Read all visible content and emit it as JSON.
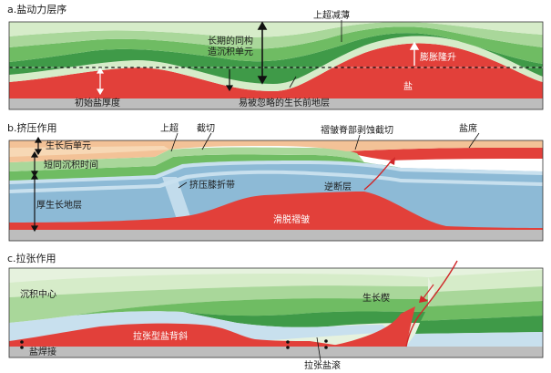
{
  "panels": [
    {
      "title": "a.盐动力层序",
      "labels": {
        "top_truncation": "上超减薄",
        "growth_sequence_1": "长期的同构",
        "growth_sequence_2": "造沉积单元",
        "uplift": "膨胀隆升",
        "salt": "盐",
        "initial_salt_thickness": "初始盐厚度",
        "pre_kinematic": "易被忽略的生长前地层"
      }
    },
    {
      "title": "b.挤压作用",
      "labels": {
        "onlap": "上超",
        "truncation": "截切",
        "crest_erosion": "褶皱脊部剥蚀截切",
        "salt_sheet": "盐席",
        "post_growth_unit": "生长后单元",
        "short_growth_time": "短同沉积时间",
        "thick_pre_growth": "厚生长地层",
        "kink_band": "挤压膝折带",
        "thrust_fault": "逆断层",
        "detachment_fold": "滑脱褶皱"
      }
    },
    {
      "title": "c.拉张作用",
      "labels": {
        "depocenter": "沉积中心",
        "growth_wedge": "生长楔",
        "extensional_anticline": "拉张型盐背斜",
        "salt_weld": "盐焊接",
        "salt_roller": "拉张盐滚"
      }
    }
  ],
  "colors": {
    "salt": "#e2403a",
    "green_dark": "#3f9a48",
    "green_mid": "#6fbc63",
    "green_light": "#a9d79a",
    "green_pale": "#d6ecc9",
    "blue": "#8dbad6",
    "blue_light": "#c8e0ee",
    "orange": "#f3c297",
    "gray_base": "#bdbdbd"
  }
}
